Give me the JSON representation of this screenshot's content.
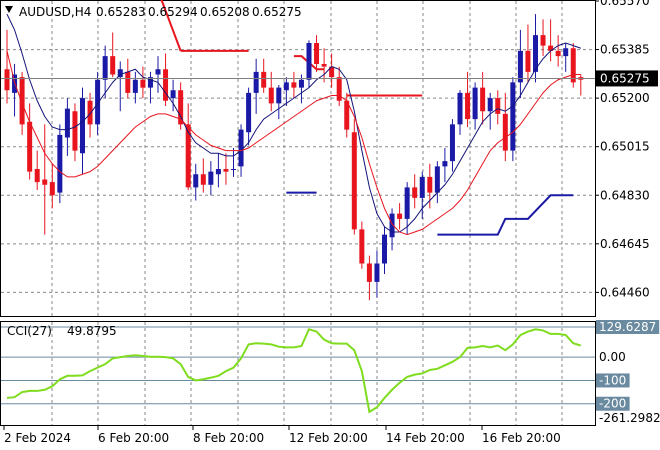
{
  "chart_data": [
    {
      "type": "candlestick",
      "symbol": "AUDUSD,H4",
      "ohlc_header": [
        "0.65283",
        "0.65294",
        "0.65208",
        "0.65275"
      ],
      "current_price": "0.65275",
      "y_ticks": [
        "0.65570",
        "0.65385",
        "0.65200",
        "0.65015",
        "0.64830",
        "0.64645",
        "0.64460"
      ],
      "ylim": [
        0.6437,
        0.6557
      ],
      "x_ticks": [
        "2 Feb 2024",
        "6 Feb 20:00",
        "8 Feb 20:00",
        "12 Feb 20:00",
        "14 Feb 20:00",
        "16 Feb 20:00"
      ],
      "colors": {
        "up": "#1a1aa6",
        "down": "#e8141e",
        "fast_ma": "#14147a",
        "slow_ma": "#e8141e",
        "stop_red": "#e8141e",
        "stop_blue": "#1a1aa6",
        "cci": "#7fdc1e"
      },
      "candles": [
        [
          0.6531,
          0.6546,
          0.6518,
          0.6523
        ],
        [
          0.6522,
          0.6533,
          0.6513,
          0.6529
        ],
        [
          0.6528,
          0.653,
          0.6506,
          0.651
        ],
        [
          0.6511,
          0.6518,
          0.6489,
          0.6492
        ],
        [
          0.6493,
          0.65,
          0.6485,
          0.6488
        ],
        [
          0.6489,
          0.651,
          0.6468,
          0.6487
        ],
        [
          0.6488,
          0.6495,
          0.6478,
          0.6483
        ],
        [
          0.6484,
          0.651,
          0.648,
          0.6506
        ],
        [
          0.6505,
          0.652,
          0.6498,
          0.6516
        ],
        [
          0.6515,
          0.6518,
          0.6496,
          0.65
        ],
        [
          0.6499,
          0.6524,
          0.6491,
          0.652
        ],
        [
          0.6519,
          0.6522,
          0.6505,
          0.651
        ],
        [
          0.651,
          0.653,
          0.6506,
          0.6527
        ],
        [
          0.6527,
          0.654,
          0.652,
          0.6536
        ],
        [
          0.6536,
          0.6545,
          0.6528,
          0.6529
        ],
        [
          0.6528,
          0.6534,
          0.6515,
          0.6531
        ],
        [
          0.653,
          0.6535,
          0.652,
          0.6522
        ],
        [
          0.6522,
          0.653,
          0.6518,
          0.6527
        ],
        [
          0.6527,
          0.6532,
          0.652,
          0.6524
        ],
        [
          0.6524,
          0.653,
          0.6518,
          0.6528
        ],
        [
          0.6529,
          0.6536,
          0.6522,
          0.6531
        ],
        [
          0.6531,
          0.6537,
          0.6517,
          0.6519
        ],
        [
          0.652,
          0.6527,
          0.6515,
          0.6523
        ],
        [
          0.6523,
          0.6526,
          0.6508,
          0.651
        ],
        [
          0.651,
          0.6518,
          0.6485,
          0.6486
        ],
        [
          0.6486,
          0.6495,
          0.6481,
          0.6491
        ],
        [
          0.6491,
          0.6497,
          0.6484,
          0.6487
        ],
        [
          0.6487,
          0.6496,
          0.6483,
          0.6492
        ],
        [
          0.6491,
          0.6499,
          0.6486,
          0.6493
        ],
        [
          0.6493,
          0.6499,
          0.6487,
          0.6492
        ],
        [
          0.6493,
          0.6501,
          0.649,
          0.6493
        ],
        [
          0.6494,
          0.651,
          0.649,
          0.6508
        ],
        [
          0.6507,
          0.6524,
          0.6502,
          0.6522
        ],
        [
          0.6522,
          0.6535,
          0.6514,
          0.653
        ],
        [
          0.653,
          0.6535,
          0.6522,
          0.6524
        ],
        [
          0.6524,
          0.653,
          0.6515,
          0.6518
        ],
        [
          0.6518,
          0.6525,
          0.6512,
          0.6524
        ],
        [
          0.6523,
          0.6528,
          0.6517,
          0.6526
        ],
        [
          0.6526,
          0.653,
          0.652,
          0.6524
        ],
        [
          0.6524,
          0.6529,
          0.6518,
          0.6527
        ],
        [
          0.6527,
          0.6542,
          0.6524,
          0.6541
        ],
        [
          0.6541,
          0.6544,
          0.653,
          0.6533
        ],
        [
          0.6533,
          0.6539,
          0.6526,
          0.6532
        ],
        [
          0.6532,
          0.6537,
          0.6524,
          0.6528
        ],
        [
          0.6528,
          0.6532,
          0.6517,
          0.6519
        ],
        [
          0.6519,
          0.6522,
          0.6505,
          0.6508
        ],
        [
          0.6507,
          0.6512,
          0.6468,
          0.647
        ],
        [
          0.647,
          0.6473,
          0.6455,
          0.6457
        ],
        [
          0.6457,
          0.646,
          0.6443,
          0.645
        ],
        [
          0.645,
          0.6462,
          0.6444,
          0.6457
        ],
        [
          0.6457,
          0.6471,
          0.6453,
          0.6468
        ],
        [
          0.6467,
          0.6478,
          0.6462,
          0.6476
        ],
        [
          0.6476,
          0.648,
          0.647,
          0.6474
        ],
        [
          0.6474,
          0.6488,
          0.6468,
          0.6486
        ],
        [
          0.6486,
          0.6491,
          0.6478,
          0.6482
        ],
        [
          0.6482,
          0.6492,
          0.6474,
          0.649
        ],
        [
          0.649,
          0.6495,
          0.6478,
          0.6484
        ],
        [
          0.6484,
          0.6496,
          0.648,
          0.6494
        ],
        [
          0.6494,
          0.6501,
          0.6488,
          0.6496
        ],
        [
          0.6496,
          0.6512,
          0.6492,
          0.651
        ],
        [
          0.651,
          0.6523,
          0.6506,
          0.6522
        ],
        [
          0.6522,
          0.653,
          0.6509,
          0.6512
        ],
        [
          0.6512,
          0.6526,
          0.6508,
          0.6524
        ],
        [
          0.6524,
          0.653,
          0.651,
          0.6515
        ],
        [
          0.6515,
          0.6522,
          0.6508,
          0.652
        ],
        [
          0.652,
          0.6523,
          0.651,
          0.6514
        ],
        [
          0.6514,
          0.6522,
          0.6496,
          0.65
        ],
        [
          0.65,
          0.6528,
          0.6496,
          0.6526
        ],
        [
          0.6526,
          0.6546,
          0.652,
          0.6538
        ],
        [
          0.6538,
          0.6548,
          0.6526,
          0.653
        ],
        [
          0.653,
          0.6552,
          0.6526,
          0.6544
        ],
        [
          0.6544,
          0.655,
          0.6536,
          0.654
        ],
        [
          0.654,
          0.655,
          0.6534,
          0.6538
        ],
        [
          0.6538,
          0.6544,
          0.6532,
          0.6536
        ],
        [
          0.6536,
          0.6541,
          0.653,
          0.6539
        ],
        [
          0.6539,
          0.6541,
          0.6524,
          0.6526
        ],
        [
          0.6528,
          0.6529,
          0.6521,
          0.6527
        ]
      ],
      "fast_ma": [
        0.6552,
        0.6546,
        0.6537,
        0.6527,
        0.6519,
        0.6513,
        0.6509,
        0.6508,
        0.6508,
        0.6509,
        0.6511,
        0.6514,
        0.6518,
        0.6522,
        0.6526,
        0.6529,
        0.653,
        0.6531,
        0.6528,
        0.6527,
        0.6526,
        0.6522,
        0.6518,
        0.6513,
        0.6507,
        0.6503,
        0.6501,
        0.6499,
        0.6499,
        0.6498,
        0.6498,
        0.65,
        0.6503,
        0.6508,
        0.6512,
        0.6514,
        0.6516,
        0.6518,
        0.652,
        0.6522,
        0.6524,
        0.6527,
        0.6529,
        0.6532,
        0.6531,
        0.6527,
        0.6515,
        0.65,
        0.6486,
        0.6476,
        0.6471,
        0.6469,
        0.6469,
        0.6471,
        0.6474,
        0.6478,
        0.6481,
        0.6484,
        0.6487,
        0.6491,
        0.6496,
        0.6501,
        0.6506,
        0.6511,
        0.6514,
        0.6516,
        0.6515,
        0.6517,
        0.6521,
        0.6526,
        0.6531,
        0.6535,
        0.6538,
        0.654,
        0.6541,
        0.654,
        0.6539
      ],
      "slow_ma": [
        0.6538,
        0.6526,
        0.6518,
        0.6511,
        0.6505,
        0.6499,
        0.6495,
        0.6492,
        0.649,
        0.649,
        0.6491,
        0.6492,
        0.6494,
        0.6497,
        0.65,
        0.6503,
        0.6506,
        0.6509,
        0.6511,
        0.6513,
        0.6514,
        0.6514,
        0.6513,
        0.6512,
        0.6509,
        0.6506,
        0.6504,
        0.6502,
        0.6501,
        0.65,
        0.65,
        0.65,
        0.6501,
        0.6503,
        0.6505,
        0.6507,
        0.6509,
        0.6511,
        0.6513,
        0.6515,
        0.6517,
        0.6519,
        0.652,
        0.6521,
        0.6521,
        0.6519,
        0.6513,
        0.6505,
        0.6495,
        0.6486,
        0.6478,
        0.6472,
        0.6469,
        0.6468,
        0.6469,
        0.647,
        0.6472,
        0.6474,
        0.6476,
        0.6478,
        0.6481,
        0.6485,
        0.649,
        0.6495,
        0.65,
        0.6503,
        0.6505,
        0.6507,
        0.651,
        0.6514,
        0.6518,
        0.6522,
        0.6525,
        0.6527,
        0.6528,
        0.6529,
        0.6529
      ],
      "stop_levels": [
        {
          "color": "red",
          "points": [
            [
              20,
              0.6561
            ],
            [
              23,
              0.6538
            ]
          ]
        },
        {
          "color": "red",
          "points": [
            [
              23,
              0.6538
            ],
            [
              32,
              0.6538
            ]
          ]
        },
        {
          "color": "red",
          "points": [
            [
              38,
              0.6536
            ],
            [
              39,
              0.6536
            ],
            [
              41,
              0.6531
            ],
            [
              42,
              0.6531
            ]
          ]
        },
        {
          "color": "red",
          "points": [
            [
              45,
              0.6521
            ],
            [
              55,
              0.6521
            ]
          ]
        },
        {
          "color": "blue",
          "points": [
            [
              37,
              0.6484
            ],
            [
              41,
              0.6484
            ]
          ]
        },
        {
          "color": "blue",
          "points": [
            [
              57,
              0.6468
            ],
            [
              65,
              0.6468
            ],
            [
              66,
              0.6474
            ],
            [
              69,
              0.6474
            ],
            [
              72,
              0.6483
            ],
            [
              75,
              0.6483
            ]
          ]
        }
      ]
    },
    {
      "type": "line",
      "label": "CCI(27)",
      "current_value": "49.8795",
      "y_ticks": [
        "129.6287",
        "0.00",
        "-100",
        "-200",
        "-261.2982"
      ],
      "level_lines": [
        129.6287,
        0,
        -100,
        -200
      ],
      "ylim": [
        -261.2982,
        129.6287
      ],
      "values": [
        -175,
        -172,
        -150,
        -145,
        -145,
        -140,
        -125,
        -95,
        -80,
        -80,
        -78,
        -60,
        -45,
        -30,
        -5,
        0,
        5,
        8,
        5,
        2,
        2,
        0,
        -5,
        -30,
        -85,
        -100,
        -95,
        -88,
        -80,
        -60,
        -45,
        -5,
        55,
        60,
        58,
        55,
        45,
        42,
        42,
        48,
        120,
        110,
        75,
        60,
        58,
        58,
        30,
        -60,
        -235,
        -215,
        -175,
        -140,
        -110,
        -85,
        -75,
        -70,
        -55,
        -50,
        -35,
        -20,
        0,
        40,
        42,
        48,
        42,
        50,
        30,
        55,
        95,
        110,
        120,
        115,
        100,
        100,
        95,
        60,
        50
      ]
    }
  ]
}
